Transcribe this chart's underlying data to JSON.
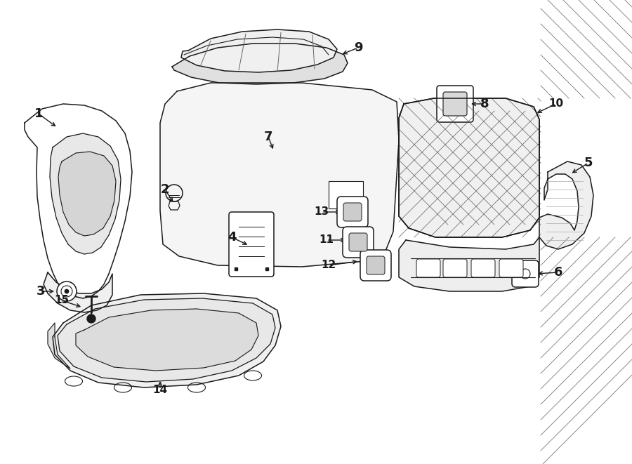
{
  "bg_color": "#ffffff",
  "line_color": "#1a1a1a",
  "fig_width": 9.0,
  "fig_height": 6.61,
  "dpi": 100,
  "lw": 1.1
}
